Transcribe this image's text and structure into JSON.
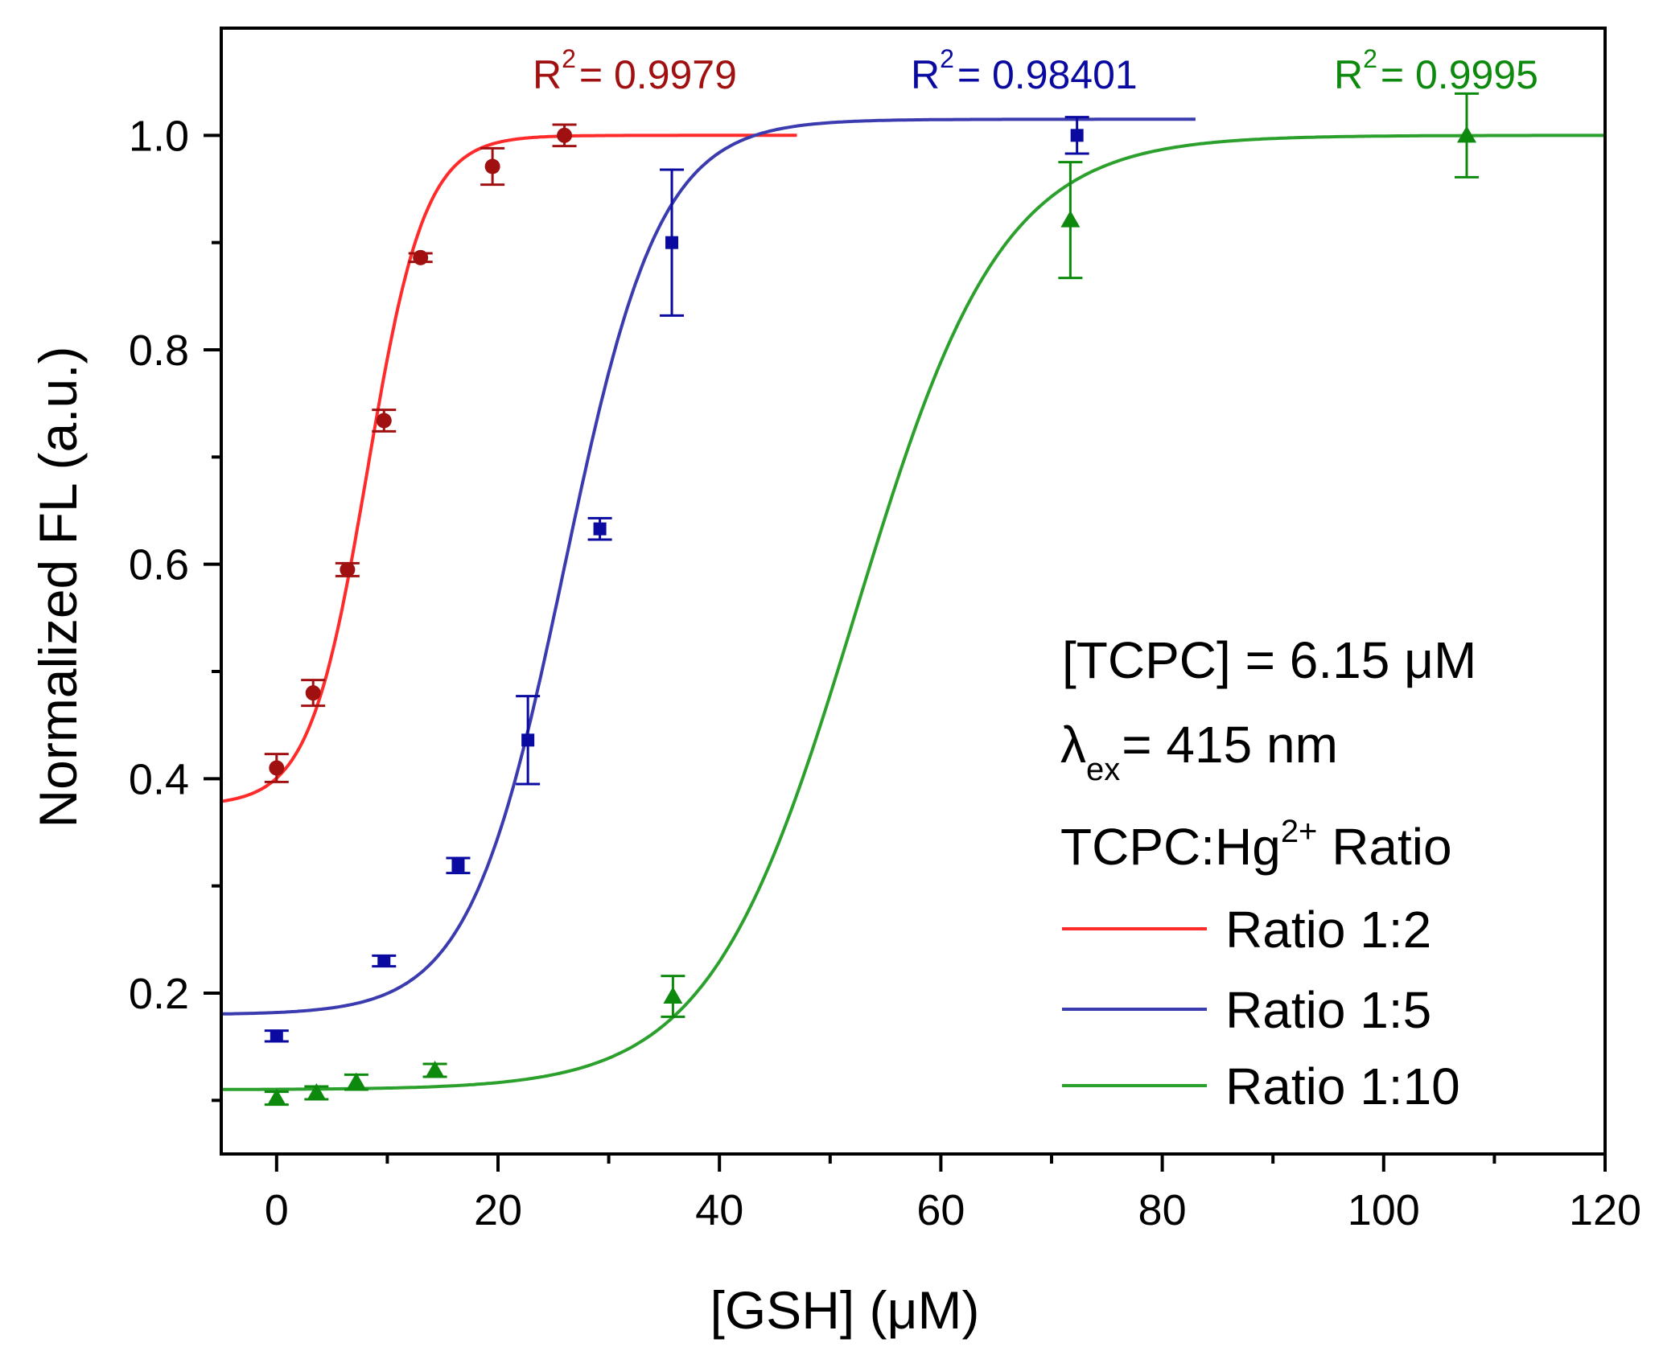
{
  "chart_data": {
    "type": "scatter",
    "xlabel": "[GSH] (μM)",
    "ylabel": "Normalized FL (a.u.)",
    "xlim": [
      -5,
      120
    ],
    "ylim": [
      0.05,
      1.1
    ],
    "x_ticks": [
      0,
      20,
      40,
      60,
      80,
      100,
      120
    ],
    "x_tick_labels": [
      "0",
      "20",
      "40",
      "60",
      "80",
      "100",
      "120"
    ],
    "y_ticks": [
      0.2,
      0.4,
      0.6,
      0.8,
      1.0
    ],
    "y_tick_labels": [
      "0.2",
      "0.4",
      "0.6",
      "0.8",
      "1.0"
    ],
    "annotations": {
      "concentration": "[TCPC] = 6.15 μM",
      "lambda_symbol": "λ",
      "lambda_sub": "ex",
      "lambda_value": "= 415 nm",
      "ratio_title_pre": "TCPC:Hg",
      "ratio_title_sup": "2+",
      "ratio_title_post": " Ratio"
    },
    "series": [
      {
        "name": "Ratio 1:2",
        "color": "#ff2a2a",
        "marker_color": "#a01010",
        "marker": "circle",
        "r2_label": "R",
        "r2_sup": "2",
        "r2_value": "= 0.9979",
        "fit": {
          "bottom": 0.375,
          "top": 1.0,
          "x0": 8.2,
          "width": 2.6,
          "x_end": 47
        },
        "points": [
          {
            "x": 0,
            "y": 0.41,
            "err": 0.013
          },
          {
            "x": 3.3,
            "y": 0.48,
            "err": 0.012
          },
          {
            "x": 6.4,
            "y": 0.595,
            "err": 0.006
          },
          {
            "x": 9.7,
            "y": 0.734,
            "err": 0.01
          },
          {
            "x": 13,
            "y": 0.886,
            "err": 0.004
          },
          {
            "x": 19.5,
            "y": 0.971,
            "err": 0.017
          },
          {
            "x": 26,
            "y": 1.0,
            "err": 0.01
          }
        ]
      },
      {
        "name": "Ratio 1:5",
        "color": "#3b3bb0",
        "marker_color": "#0a0aa0",
        "marker": "square",
        "r2_label": "R",
        "r2_sup": "2",
        "r2_value": "= 0.98401",
        "fit": {
          "bottom": 0.18,
          "top": 1.015,
          "x0": 26,
          "width": 4.3,
          "x_end": 83
        },
        "points": [
          {
            "x": 0,
            "y": 0.16,
            "err": 0.005
          },
          {
            "x": 9.7,
            "y": 0.23,
            "err": 0.005
          },
          {
            "x": 16.4,
            "y": 0.319,
            "err": 0.007
          },
          {
            "x": 22.7,
            "y": 0.436,
            "err": 0.041
          },
          {
            "x": 29.2,
            "y": 0.633,
            "err": 0.01
          },
          {
            "x": 35.7,
            "y": 0.9,
            "err": 0.068
          },
          {
            "x": 72.3,
            "y": 1.0,
            "err": 0.017
          }
        ]
      },
      {
        "name": "Ratio 1:10",
        "color": "#2ca02c",
        "marker_color": "#0d8a0d",
        "marker": "triangle",
        "r2_label": "R",
        "r2_sup": "2",
        "r2_value": "= 0.9995",
        "fit": {
          "bottom": 0.11,
          "top": 1.0,
          "x0": 52.3,
          "width": 6.6,
          "x_end": 120
        },
        "points": [
          {
            "x": 0,
            "y": 0.102,
            "err": 0.006
          },
          {
            "x": 3.6,
            "y": 0.107,
            "err": 0.006
          },
          {
            "x": 7.2,
            "y": 0.117,
            "err": 0.007
          },
          {
            "x": 14.3,
            "y": 0.128,
            "err": 0.006
          },
          {
            "x": 35.8,
            "y": 0.197,
            "err": 0.019
          },
          {
            "x": 71.7,
            "y": 0.921,
            "err": 0.054
          },
          {
            "x": 107.5,
            "y": 1.0,
            "err": 0.039
          }
        ]
      }
    ]
  }
}
